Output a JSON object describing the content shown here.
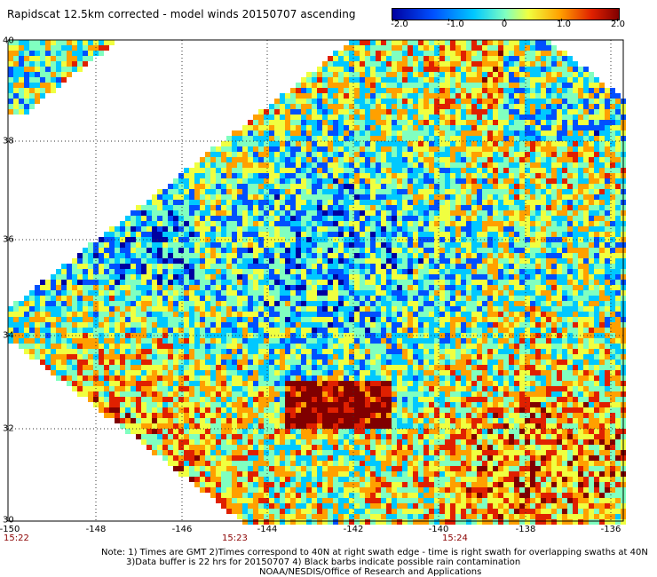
{
  "title": "Rapidscat 12.5km corrected - model winds 20150707 ascending",
  "colorbar": {
    "ticks": [
      "-2.0",
      "-1.0",
      "0",
      "1.0",
      "2.0"
    ],
    "colors": [
      "#0000a0",
      "#0050ff",
      "#00c8ff",
      "#80ffc0",
      "#f0ff40",
      "#ffa000",
      "#e02000",
      "#800000"
    ]
  },
  "axes": {
    "longitude_labels": [
      "-150",
      "-148",
      "-146",
      "-144",
      "-142",
      "-140",
      "-138",
      "-136"
    ],
    "latitude_labels": [
      "30",
      "32",
      "34",
      "36",
      "38",
      "40"
    ],
    "lon_range": [
      -150,
      -135
    ],
    "lat_range": [
      30,
      40
    ],
    "grid": "dotted"
  },
  "time_labels": [
    "15:22",
    "15:23",
    "15:24"
  ],
  "notes": {
    "line1": "Note: 1) Times are GMT 2)Times correspond to 40N at right swath edge - time is right swath for overlapping swaths at 40N",
    "line2": "3)Data buffer is 22 hrs for 20150707 4) Black barbs indicate possible rain contamination",
    "line3": "NOAA/NESDIS/Office of Research and Applications"
  }
}
